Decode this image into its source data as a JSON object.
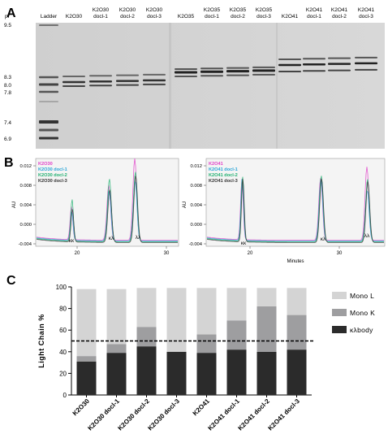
{
  "figure": {
    "panel_letters": [
      "A",
      "B",
      "C"
    ]
  },
  "gel": {
    "pi_header": "pI",
    "pi_markers": [
      "9.5",
      "8.3",
      "8.0",
      "7.8",
      "7.4",
      "6.9"
    ],
    "lanes": [
      {
        "label_1": "Ladder",
        "label_2": ""
      },
      {
        "label_1": "K2O30",
        "label_2": ""
      },
      {
        "label_1": "K2O30",
        "label_2": "docl-1"
      },
      {
        "label_1": "K2O30",
        "label_2": "docl-2"
      },
      {
        "label_1": "K2O30",
        "label_2": "docl-3"
      },
      {
        "label_1": "K2O35",
        "label_2": ""
      },
      {
        "label_1": "K2O35",
        "label_2": "docl-1"
      },
      {
        "label_1": "K2O35",
        "label_2": "docl-2"
      },
      {
        "label_1": "K2O35",
        "label_2": "docl-3"
      },
      {
        "label_1": "K2O41",
        "label_2": ""
      },
      {
        "label_1": "K2O41",
        "label_2": "docl-1"
      },
      {
        "label_1": "K2O41",
        "label_2": "docl-2"
      },
      {
        "label_1": "K2O41",
        "label_2": "docl-3"
      }
    ]
  },
  "chromatograms": [
    {
      "y_axis_label": "AU",
      "y_ticks": [
        "0.012",
        "0.008",
        "0.004",
        "0.000",
        "-0.004"
      ],
      "x_ticks": [
        "20",
        "30"
      ],
      "x_axis_label": "",
      "legend": [
        {
          "name": "K2O30",
          "color": "#e040c8"
        },
        {
          "name": "K2O30 docl-1",
          "color": "#2aa6d8"
        },
        {
          "name": "K2O30 docl-2",
          "color": "#20b070"
        },
        {
          "name": "K2O30 docl-3",
          "color": "#333333"
        }
      ],
      "peak_labels": [
        "κκ",
        "κλ",
        "λλ"
      ]
    },
    {
      "y_axis_label": "AU",
      "y_ticks": [
        "0.012",
        "0.008",
        "0.004",
        "0.000",
        "-0.004"
      ],
      "x_ticks": [
        "20",
        "30"
      ],
      "x_axis_label": "Minutes",
      "legend": [
        {
          "name": "K2O41",
          "color": "#e040c8"
        },
        {
          "name": "K2O41 docl-1",
          "color": "#2aa6d8"
        },
        {
          "name": "K2O41 docl-2",
          "color": "#20b070"
        },
        {
          "name": "K2O41 docl-3",
          "color": "#333333"
        }
      ],
      "peak_labels": [
        "κκ",
        "κλ",
        "λλ"
      ]
    }
  ],
  "chart_data": {
    "type": "bar",
    "stacked": true,
    "categories": [
      "K2O30",
      "K2O30 docl-1",
      "K2O30 docl-2",
      "K2O30 docl-3",
      "K2O41",
      "K2O41 docl-1",
      "K2O41 docl-2",
      "K2O41 docl-3"
    ],
    "series": [
      {
        "name": "κλbody",
        "color": "#2b2b2b",
        "values": [
          31,
          39,
          45,
          40,
          39,
          42,
          40,
          42
        ]
      },
      {
        "name": "Mono K",
        "color": "#9e9ea0",
        "values": [
          5,
          8,
          18,
          0,
          17,
          27,
          42,
          32
        ]
      },
      {
        "name": "Mono L",
        "color": "#d4d4d4",
        "values": [
          62,
          51,
          36,
          59,
          43,
          30,
          17,
          25
        ]
      }
    ],
    "legend_order": [
      "Mono L",
      "Mono K",
      "κλbody"
    ],
    "ylabel": "Light Chain %",
    "yticks": [
      "0",
      "20",
      "40",
      "60",
      "80",
      "100"
    ],
    "ylim": [
      0,
      100
    ],
    "reference_line": 50,
    "legend_position": "right"
  }
}
